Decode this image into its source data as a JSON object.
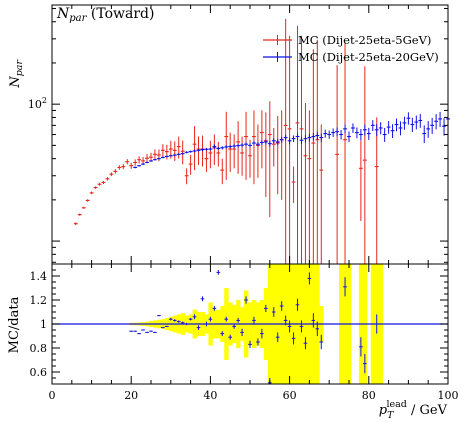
{
  "chart_data": {
    "type": "scatter",
    "title_main": "N",
    "title_sub": "par",
    "title_rest": " (Toward)",
    "top_panel": {
      "ylabel_main": "N",
      "ylabel_sub": "par",
      "yscale": "log",
      "ylim": [
        6.8,
        530
      ],
      "yticks": [
        {
          "value": 100,
          "label_base": "10",
          "label_exp": "2"
        }
      ]
    },
    "bottom_panel": {
      "ylabel": "MC/data",
      "ylim": [
        0.5,
        1.5
      ],
      "yticks": [
        {
          "value": 0.6,
          "label": "0.6"
        },
        {
          "value": 0.8,
          "label": "0.8"
        },
        {
          "value": 1.0,
          "label": "1"
        },
        {
          "value": 1.2,
          "label": "1.2"
        },
        {
          "value": 1.4,
          "label": "1.4"
        }
      ],
      "reference_line": 1.0,
      "band_color": "#ffff00"
    },
    "xlim": [
      0,
      100
    ],
    "xticks": [
      {
        "value": 0,
        "label": "0"
      },
      {
        "value": 20,
        "label": "20"
      },
      {
        "value": 40,
        "label": "40"
      },
      {
        "value": 60,
        "label": "60"
      },
      {
        "value": 80,
        "label": "80"
      },
      {
        "value": 100,
        "label": "100"
      }
    ],
    "xlabel_main": "p",
    "xlabel_sub": "T",
    "xlabel_sup": "lead",
    "xlabel_unit": " / GeV",
    "legend_position": "top-right",
    "series": [
      {
        "name": "MC (Dijet-25eta-5GeV)",
        "color": "#e8261c",
        "x": [
          6,
          7,
          8,
          9,
          10,
          11,
          12,
          13,
          14,
          15,
          16,
          17,
          18,
          19,
          20,
          21,
          22,
          23,
          24,
          25,
          26,
          27,
          28,
          29,
          30,
          31,
          32,
          33,
          34,
          35,
          36,
          37,
          38,
          39,
          40,
          41,
          42,
          43,
          44,
          45,
          46,
          47,
          48,
          49,
          50,
          51,
          52,
          53,
          54,
          55,
          56,
          57,
          58,
          59,
          60,
          61,
          62,
          63,
          64,
          65,
          66,
          67,
          68,
          72,
          74,
          78,
          79,
          82
        ],
        "y": [
          13.4,
          15.6,
          17.5,
          19.8,
          22.5,
          24.6,
          26,
          26.8,
          28.5,
          30.8,
          32.3,
          34.5,
          35,
          38,
          35.5,
          37.5,
          39.3,
          38.5,
          40.3,
          41,
          43,
          42.5,
          46,
          45,
          47,
          46,
          49,
          45.3,
          30,
          36.5,
          51,
          47,
          47,
          40,
          44,
          48,
          44,
          33,
          58,
          47,
          47,
          53,
          44,
          58,
          42,
          58,
          50,
          62,
          54,
          60,
          51,
          52,
          55,
          70,
          66,
          27,
          73,
          66,
          42,
          40,
          52,
          55,
          33,
          43,
          55,
          34,
          39,
          35
        ],
        "err": [
          0.3,
          0.3,
          0.3,
          0.4,
          0.5,
          0.5,
          0.6,
          0.7,
          0.8,
          0.9,
          1.2,
          1.3,
          1.5,
          1.7,
          1.8,
          2,
          2.4,
          2.6,
          2.9,
          3.2,
          3.8,
          4.2,
          5,
          5.5,
          7,
          7.5,
          9,
          9,
          4,
          6,
          18,
          11,
          12,
          8,
          10,
          12,
          9,
          7,
          30,
          15,
          13,
          22,
          14,
          30,
          13,
          32,
          21,
          28,
          33,
          45,
          16,
          30,
          35,
          350,
          250,
          8,
          300,
          250,
          60,
          50,
          200,
          240,
          38,
          150,
          230,
          20,
          150,
          45
        ]
      },
      {
        "name": "MC (Dijet-25eta-20GeV)",
        "color": "#1212e8",
        "x": [
          21,
          22,
          23,
          24,
          25,
          26,
          27,
          28,
          29,
          30,
          31,
          32,
          33,
          34,
          35,
          36,
          37,
          38,
          39,
          40,
          41,
          42,
          43,
          44,
          45,
          46,
          47,
          48,
          49,
          50,
          51,
          52,
          53,
          54,
          55,
          56,
          57,
          58,
          59,
          60,
          61,
          62,
          63,
          64,
          65,
          66,
          67,
          68,
          69,
          70,
          71,
          72,
          73,
          74,
          75,
          76,
          77,
          78,
          79,
          80,
          81,
          82,
          83,
          84,
          85,
          86,
          87,
          88,
          89,
          90,
          91,
          92,
          93,
          94,
          95,
          96,
          97,
          98,
          99,
          100
        ],
        "y": [
          34.5,
          35.5,
          36.5,
          37.5,
          38.5,
          39.3,
          40,
          40.8,
          41.5,
          42,
          42.5,
          43,
          43.5,
          44.5,
          45,
          45.5,
          46,
          46.5,
          46.8,
          47,
          49,
          47.5,
          48,
          48.7,
          49,
          49.4,
          49.8,
          50.2,
          51,
          50,
          52,
          51,
          52.5,
          53,
          51.5,
          54,
          53,
          55,
          57,
          54,
          56,
          58,
          54.5,
          56,
          57,
          58,
          59,
          57,
          61,
          60,
          62,
          63,
          60,
          66,
          58,
          67,
          62,
          60,
          65,
          61,
          70,
          65,
          67,
          60,
          68,
          64,
          71,
          67,
          73,
          79,
          71,
          74,
          76,
          61,
          66,
          70,
          75,
          78,
          69,
          78
        ],
        "err": [
          0.5,
          0.5,
          0.5,
          0.5,
          0.5,
          0.5,
          0.6,
          0.6,
          0.6,
          0.6,
          0.7,
          0.7,
          0.7,
          0.8,
          0.8,
          0.9,
          0.9,
          1,
          1,
          1.1,
          2,
          1.2,
          1.3,
          1.3,
          1.4,
          1.5,
          1.6,
          1.7,
          1.8,
          1.9,
          2,
          2.1,
          2.2,
          2.3,
          2.4,
          2.5,
          2.6,
          2.7,
          2.8,
          3,
          3.1,
          3.2,
          3.3,
          3.4,
          3.5,
          3.6,
          3.8,
          4,
          4.1,
          4.2,
          4.4,
          4.6,
          4.8,
          5,
          5.2,
          5.4,
          5.6,
          5.8,
          6,
          6.2,
          6.4,
          6.6,
          6.8,
          7,
          7.2,
          7.4,
          7.6,
          7.8,
          8,
          8.2,
          8.4,
          8.6,
          8.8,
          9,
          9.2,
          9.4,
          9.6,
          9.8,
          10,
          10
        ]
      }
    ],
    "ratio_points": {
      "x": [
        20,
        21,
        22,
        23,
        24,
        25,
        26,
        27,
        28,
        29,
        30,
        31,
        32,
        33,
        34,
        35,
        36,
        37,
        38,
        39,
        40,
        41,
        42,
        43,
        44,
        45,
        46,
        47,
        48,
        49,
        50,
        51,
        52,
        53,
        54,
        55,
        56,
        57,
        58,
        59,
        60,
        61,
        62,
        63,
        64,
        65,
        66,
        67,
        68,
        74,
        78,
        79,
        82
      ],
      "y": [
        0.94,
        0.94,
        0.92,
        0.95,
        0.93,
        0.94,
        0.93,
        1.07,
        0.97,
        0.98,
        1.04,
        1.03,
        1.02,
        1.01,
        1.0,
        1.04,
        1.06,
        0.97,
        1.21,
        1.0,
        1.04,
        1.13,
        1.43,
        0.92,
        1.04,
        0.89,
        0.98,
        1.03,
        0.93,
        1.2,
        0.83,
        1.03,
        0.85,
        0.92,
        1.13,
        0.51,
        1.1,
        0.89,
        1.15,
        1.03,
        0.98,
        0.88,
        1.16,
        0.98,
        0.84,
        1.38,
        1.03,
        0.96,
        0.85,
        1.31,
        0.81,
        0.67,
        1.0
      ],
      "err": [
        0.005,
        0.005,
        0.005,
        0.005,
        0.005,
        0.005,
        0.005,
        0.005,
        0.005,
        0.005,
        0.01,
        0.01,
        0.01,
        0.01,
        0.01,
        0.01,
        0.02,
        0.02,
        0.02,
        0.02,
        0.02,
        0.02,
        0.02,
        0.02,
        0.02,
        0.02,
        0.02,
        0.02,
        0.03,
        0.03,
        0.03,
        0.03,
        0.03,
        0.04,
        0.03,
        0.04,
        0.04,
        0.04,
        0.04,
        0.04,
        0.05,
        0.05,
        0.05,
        0.05,
        0.05,
        0.05,
        0.06,
        0.06,
        0.06,
        0.08,
        0.08,
        0.08,
        0.08
      ],
      "color": "#1212e8"
    },
    "ratio_band": {
      "x": [
        20,
        21,
        22,
        23,
        24,
        25,
        26,
        27,
        28,
        29,
        30,
        31,
        32,
        33,
        34,
        35,
        36,
        37,
        38,
        39,
        40,
        41,
        42,
        43,
        44,
        45,
        46,
        47,
        48,
        49,
        50,
        51,
        52,
        53,
        54,
        55,
        56,
        57,
        58,
        59,
        60,
        61,
        62,
        63,
        64,
        65,
        66,
        67,
        68,
        73,
        74,
        75,
        78,
        79,
        81,
        82,
        83
      ],
      "half": [
        0.01,
        0.01,
        0.012,
        0.015,
        0.02,
        0.025,
        0.03,
        0.035,
        0.04,
        0.05,
        0.06,
        0.07,
        0.08,
        0.09,
        0.07,
        0.08,
        0.12,
        0.1,
        0.1,
        0.08,
        0.18,
        0.12,
        0.12,
        0.15,
        0.3,
        0.18,
        0.16,
        0.2,
        0.14,
        0.28,
        0.18,
        0.2,
        0.18,
        0.2,
        0.3,
        0.6,
        0.6,
        0.6,
        0.6,
        0.6,
        0.6,
        0.6,
        0.6,
        0.6,
        0.6,
        0.6,
        0.6,
        0.6,
        0.15,
        0.6,
        0.6,
        0.6,
        0.6,
        0.6,
        0.6,
        0.6,
        0.6
      ]
    }
  }
}
